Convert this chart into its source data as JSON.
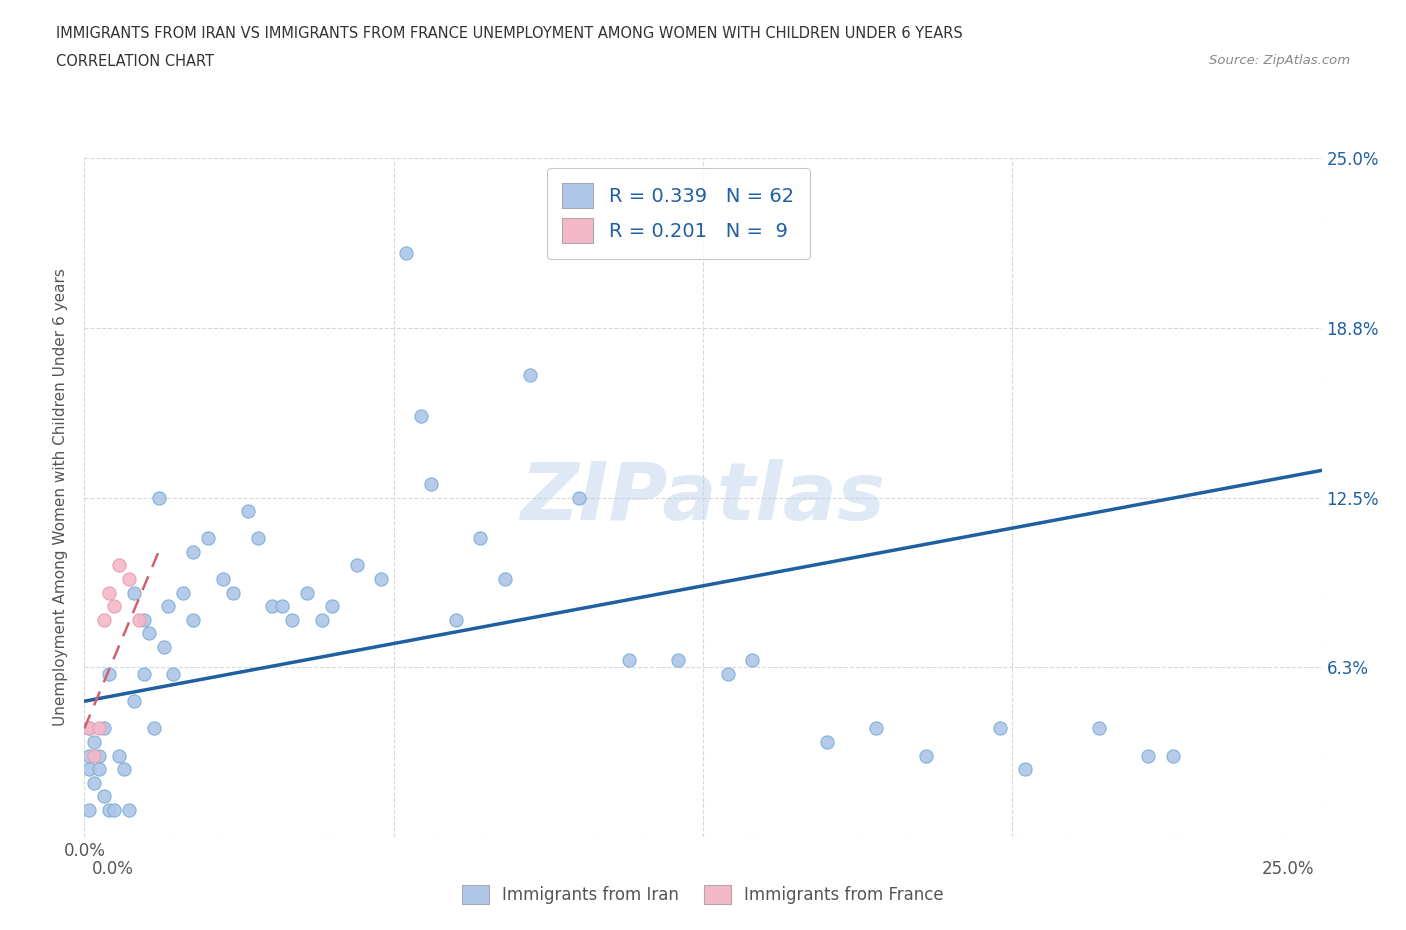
{
  "title_line1": "IMMIGRANTS FROM IRAN VS IMMIGRANTS FROM FRANCE UNEMPLOYMENT AMONG WOMEN WITH CHILDREN UNDER 6 YEARS",
  "title_line2": "CORRELATION CHART",
  "source_text": "Source: ZipAtlas.com",
  "ylabel": "Unemployment Among Women with Children Under 6 years",
  "watermark": "ZIPatlas",
  "iran_color": "#aec6e8",
  "iran_edge_color": "#7aadd4",
  "france_color": "#f4b8c8",
  "france_edge_color": "#e899b0",
  "iran_line_color": "#2060a0",
  "france_line_color": "#d06070",
  "iran_R": 0.339,
  "iran_N": 62,
  "france_R": 0.201,
  "france_N": 9,
  "xlim": [
    0.0,
    0.25
  ],
  "ylim": [
    0.0,
    0.25
  ],
  "iran_x": [
    0.001,
    0.001,
    0.001,
    0.001,
    0.002,
    0.002,
    0.003,
    0.003,
    0.004,
    0.004,
    0.005,
    0.005,
    0.006,
    0.007,
    0.008,
    0.009,
    0.01,
    0.01,
    0.012,
    0.012,
    0.013,
    0.014,
    0.015,
    0.016,
    0.017,
    0.018,
    0.02,
    0.022,
    0.022,
    0.025,
    0.028,
    0.03,
    0.033,
    0.035,
    0.038,
    0.04,
    0.042,
    0.045,
    0.048,
    0.05,
    0.055,
    0.06,
    0.065,
    0.068,
    0.07,
    0.075,
    0.08,
    0.085,
    0.09,
    0.1,
    0.11,
    0.12,
    0.13,
    0.135,
    0.15,
    0.16,
    0.17,
    0.185,
    0.19,
    0.205,
    0.215,
    0.22
  ],
  "iran_y": [
    0.04,
    0.03,
    0.025,
    0.01,
    0.035,
    0.02,
    0.03,
    0.025,
    0.04,
    0.015,
    0.06,
    0.01,
    0.01,
    0.03,
    0.025,
    0.01,
    0.05,
    0.09,
    0.06,
    0.08,
    0.075,
    0.04,
    0.125,
    0.07,
    0.085,
    0.06,
    0.09,
    0.105,
    0.08,
    0.11,
    0.095,
    0.09,
    0.12,
    0.11,
    0.085,
    0.085,
    0.08,
    0.09,
    0.08,
    0.085,
    0.1,
    0.095,
    0.215,
    0.155,
    0.13,
    0.08,
    0.11,
    0.095,
    0.17,
    0.125,
    0.065,
    0.065,
    0.06,
    0.065,
    0.035,
    0.04,
    0.03,
    0.04,
    0.025,
    0.04,
    0.03,
    0.03
  ],
  "france_x": [
    0.001,
    0.002,
    0.003,
    0.004,
    0.005,
    0.006,
    0.007,
    0.009,
    0.011
  ],
  "france_y": [
    0.04,
    0.03,
    0.04,
    0.08,
    0.09,
    0.085,
    0.1,
    0.095,
    0.08
  ],
  "iran_line_x": [
    0.0,
    0.25
  ],
  "iran_line_y": [
    0.05,
    0.135
  ],
  "france_line_x": [
    0.0,
    0.015
  ],
  "france_line_y": [
    0.04,
    0.105
  ],
  "background_color": "#ffffff",
  "grid_color": "#d8d8d8",
  "grid_style": "--",
  "legend_box_color": "#cccccc",
  "legend_text_color": "#2060a0",
  "tick_color": "#2060a0",
  "label_color": "#555555"
}
